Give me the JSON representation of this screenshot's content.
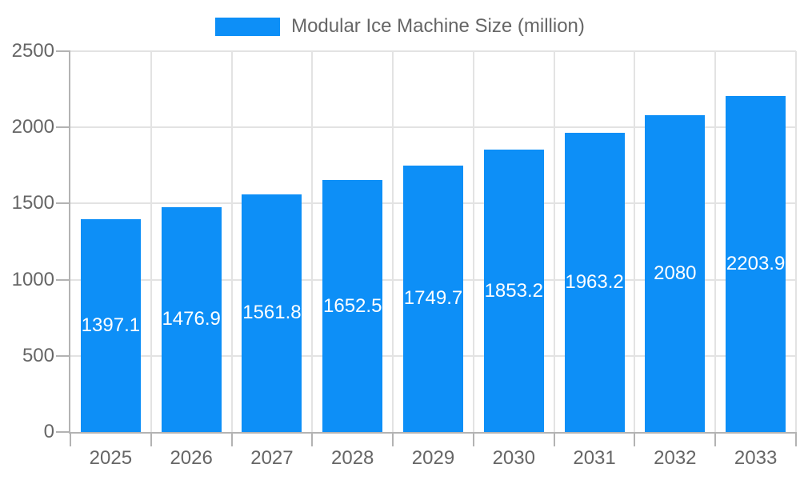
{
  "legend": {
    "label": "Modular Ice Machine Size (million)"
  },
  "colors": {
    "bar": "#0d8ff7",
    "bar_label": "#ffffff",
    "axis": "#b3b3b3",
    "grid": "#e3e3e3",
    "text": "#666666",
    "background": "#ffffff"
  },
  "chart_data": {
    "type": "bar",
    "title": "",
    "categories": [
      "2025",
      "2026",
      "2027",
      "2028",
      "2029",
      "2030",
      "2031",
      "2032",
      "2033"
    ],
    "series": [
      {
        "name": "Modular Ice Machine Size (million)",
        "values": [
          1397.1,
          1476.9,
          1561.8,
          1652.5,
          1749.7,
          1853.2,
          1963.2,
          2080,
          2203.9
        ]
      }
    ],
    "bar_labels": [
      "1397.1",
      "1476.9",
      "1561.8",
      "1652.5",
      "1749.7",
      "1853.2",
      "1963.2",
      "2080",
      "2203.9"
    ],
    "xlabel": "",
    "ylabel": "",
    "ylim": [
      0,
      2500
    ],
    "yticks": [
      0,
      500,
      1000,
      1500,
      2000,
      2500
    ],
    "grid": true,
    "legend_position": "top"
  }
}
